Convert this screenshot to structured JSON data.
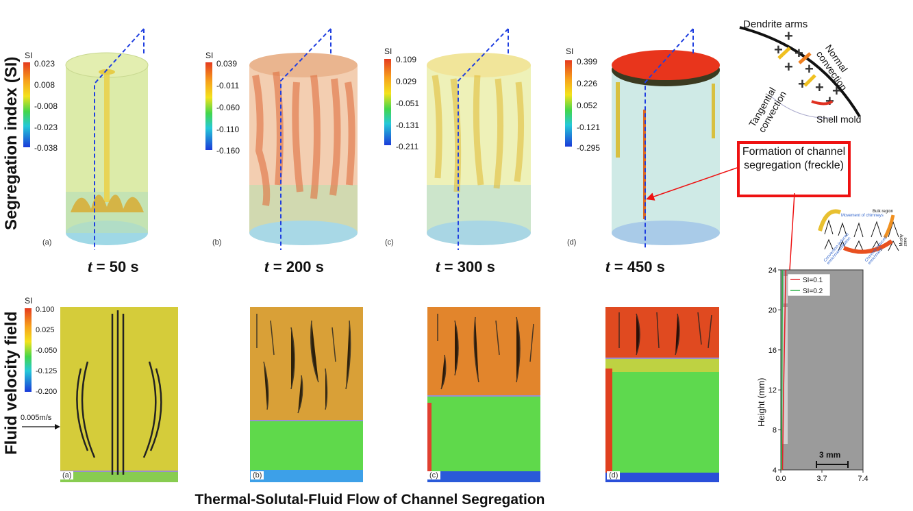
{
  "row_labels": {
    "top": "Segregation index (SI)",
    "bottom": "Fluid velocity field"
  },
  "caption": "Thermal-Solutal-Fluid Flow of Channel Segregation",
  "time_labels": [
    "= 50 s",
    "= 200 s",
    "= 300 s",
    "= 450 s"
  ],
  "time_symbol": "t",
  "si_label": "SI",
  "panel_letters": [
    "(a)",
    "(b)",
    "(c)",
    "(d)"
  ],
  "colorbars_top": [
    [
      "0.023",
      "0.008",
      "-0.008",
      "-0.023",
      "-0.038"
    ],
    [
      "0.039",
      "-0.011",
      "-0.060",
      "-0.110",
      "-0.160"
    ],
    [
      "0.109",
      "0.029",
      "-0.051",
      "-0.131",
      "-0.211"
    ],
    [
      "0.399",
      "0.226",
      "0.052",
      "-0.121",
      "-0.295"
    ]
  ],
  "colorbar_bottom": [
    "0.100",
    "0.025",
    "-0.050",
    "-0.125",
    "-0.200"
  ],
  "velocity_scale": "0.005m/s",
  "callout": "Formation of channel segregation (freckle)",
  "schematic": {
    "dendrite_arms": "Dendrite arms",
    "normal_convection": "Normal convection",
    "tangential_convection": "Tangential convection",
    "shell_mold": "Shell mold"
  },
  "chimney_schematic": {
    "bulk_region": "Bulk region",
    "mushy_zone": "Mushy zone",
    "movement": "Movement of chimneys",
    "convection": "Convection-induced enrichment/dilution",
    "chimney": "Chimney-induced enrichment"
  },
  "chart_data": {
    "type": "line",
    "ylabel": "Height (mm)",
    "xticks": [
      "0.0",
      "3.7",
      "7.4"
    ],
    "yticks": [
      "4",
      "8",
      "12",
      "16",
      "20",
      "24"
    ],
    "xlim": [
      0,
      7.4
    ],
    "ylim": [
      4,
      24
    ],
    "scale_bar": "3 mm",
    "series": [
      {
        "name": "SI=0.1",
        "color": "#e0252b",
        "x": [
          0.15,
          0.2,
          0.25,
          0.35,
          0.45
        ],
        "y": [
          4,
          8,
          12,
          18,
          24
        ]
      },
      {
        "name": "SI=0.2",
        "color": "#2fb34a",
        "x": [
          0.05,
          0.08,
          0.1,
          0.12,
          0.15
        ],
        "y": [
          4,
          8,
          12,
          18,
          24
        ]
      }
    ]
  },
  "colors": {
    "callout_border": "#e11111",
    "dash_line": "#1f3fe0"
  }
}
